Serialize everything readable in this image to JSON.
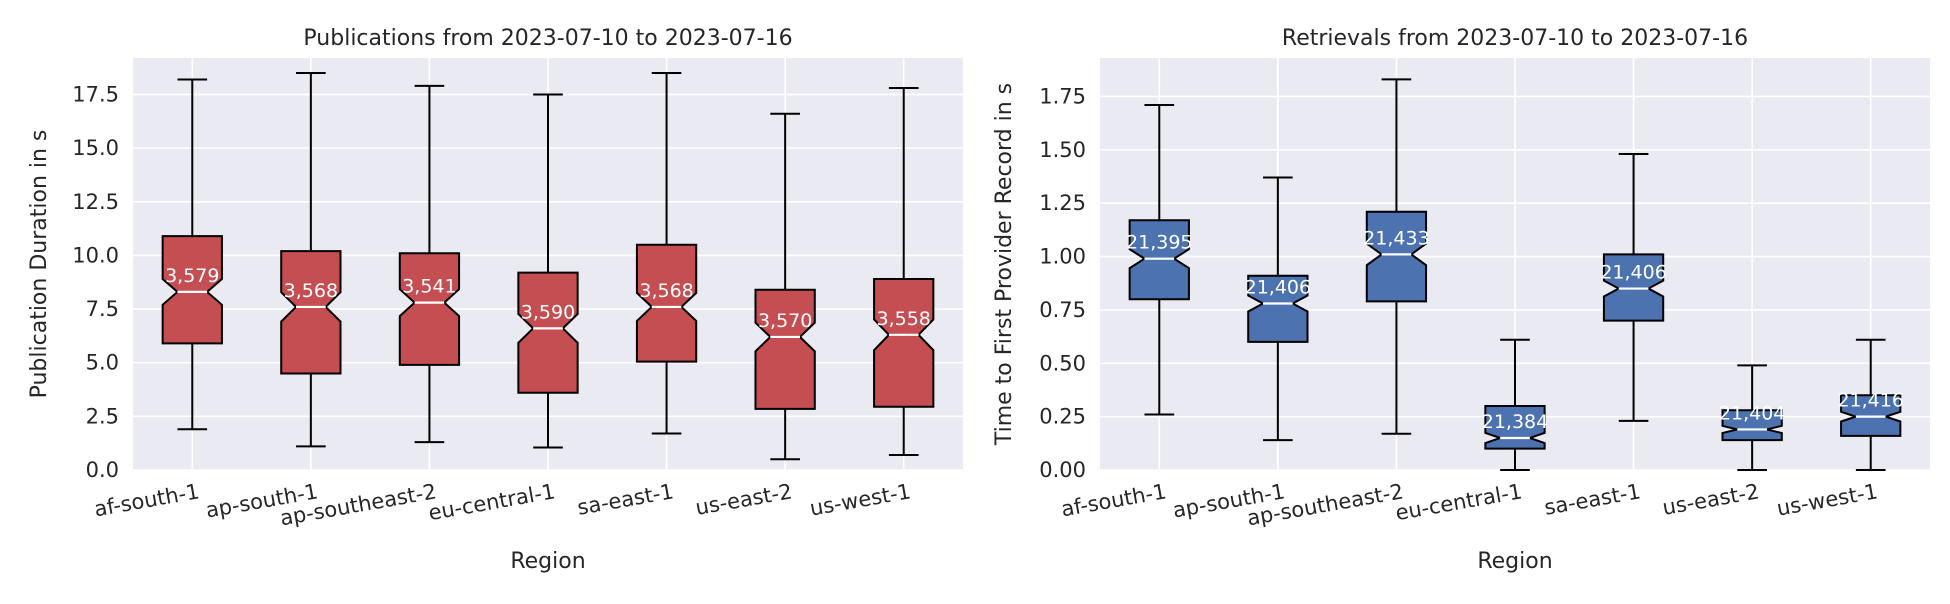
{
  "chart_data": [
    {
      "type": "box",
      "title": "Publications from 2023-07-10 to 2023-07-16",
      "xlabel": "Region",
      "ylabel": "Publication Duration in s",
      "ylim": [
        0,
        19.2
      ],
      "yticks": [
        "0.0",
        "2.5",
        "5.0",
        "7.5",
        "10.0",
        "12.5",
        "15.0",
        "17.5"
      ],
      "ytick_values": [
        0,
        2.5,
        5.0,
        7.5,
        10.0,
        12.5,
        15.0,
        17.5
      ],
      "grid": true,
      "notched": true,
      "color": "#c44e52",
      "categories": [
        "af-south-1",
        "ap-south-1",
        "ap-southeast-2",
        "eu-central-1",
        "sa-east-1",
        "us-east-2",
        "us-west-1"
      ],
      "boxes": [
        {
          "whislo": 1.9,
          "q1": 5.9,
          "med": 8.3,
          "q3": 10.9,
          "whishi": 18.2,
          "label": "3,579"
        },
        {
          "whislo": 1.1,
          "q1": 4.5,
          "med": 7.6,
          "q3": 10.2,
          "whishi": 18.5,
          "label": "3,568"
        },
        {
          "whislo": 1.3,
          "q1": 4.9,
          "med": 7.8,
          "q3": 10.1,
          "whishi": 17.9,
          "label": "3,541"
        },
        {
          "whislo": 1.05,
          "q1": 3.6,
          "med": 6.6,
          "q3": 9.2,
          "whishi": 17.5,
          "label": "3,590"
        },
        {
          "whislo": 1.7,
          "q1": 5.05,
          "med": 7.6,
          "q3": 10.5,
          "whishi": 18.5,
          "label": "3,568"
        },
        {
          "whislo": 0.5,
          "q1": 2.85,
          "med": 6.2,
          "q3": 8.4,
          "whishi": 16.6,
          "label": "3,570"
        },
        {
          "whislo": 0.7,
          "q1": 2.95,
          "med": 6.3,
          "q3": 8.9,
          "whishi": 17.8,
          "label": "3,558"
        }
      ]
    },
    {
      "type": "box",
      "title": "Retrievals from 2023-07-10 to 2023-07-16",
      "xlabel": "Region",
      "ylabel": "Time to First Provider Record in s",
      "ylim": [
        0,
        1.93
      ],
      "yticks": [
        "0.00",
        "0.25",
        "0.50",
        "0.75",
        "1.00",
        "1.25",
        "1.50",
        "1.75"
      ],
      "ytick_values": [
        0,
        0.25,
        0.5,
        0.75,
        1.0,
        1.25,
        1.5,
        1.75
      ],
      "grid": true,
      "notched": true,
      "color": "#4c72b0",
      "categories": [
        "af-south-1",
        "ap-south-1",
        "ap-southeast-2",
        "eu-central-1",
        "sa-east-1",
        "us-east-2",
        "us-west-1"
      ],
      "boxes": [
        {
          "whislo": 0.26,
          "q1": 0.8,
          "med": 0.99,
          "q3": 1.17,
          "whishi": 1.71,
          "label": "21,395"
        },
        {
          "whislo": 0.14,
          "q1": 0.6,
          "med": 0.78,
          "q3": 0.91,
          "whishi": 1.37,
          "label": "21,406"
        },
        {
          "whislo": 0.17,
          "q1": 0.79,
          "med": 1.01,
          "q3": 1.21,
          "whishi": 1.83,
          "label": "21,433"
        },
        {
          "whislo": 0.0,
          "q1": 0.1,
          "med": 0.15,
          "q3": 0.3,
          "whishi": 0.61,
          "label": "21,384"
        },
        {
          "whislo": 0.23,
          "q1": 0.7,
          "med": 0.85,
          "q3": 1.01,
          "whishi": 1.48,
          "label": "21,406"
        },
        {
          "whislo": 0.0,
          "q1": 0.14,
          "med": 0.19,
          "q3": 0.28,
          "whishi": 0.49,
          "label": "21,404"
        },
        {
          "whislo": 0.0,
          "q1": 0.16,
          "med": 0.25,
          "q3": 0.35,
          "whishi": 0.61,
          "label": "21,416"
        }
      ]
    }
  ]
}
